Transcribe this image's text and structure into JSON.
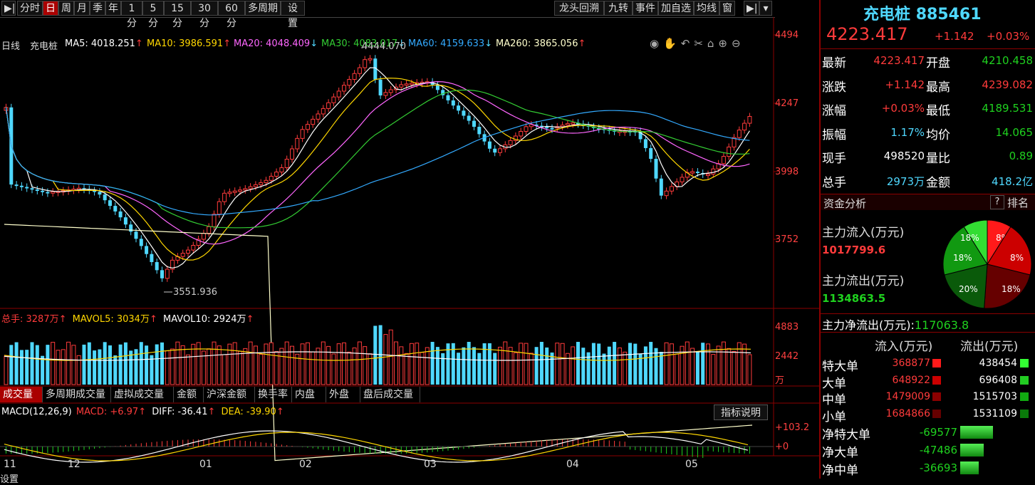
{
  "toolbar": {
    "left_items": [
      "分时",
      "日",
      "周",
      "月",
      "季",
      "年",
      "1分",
      "5分",
      "15分",
      "30分",
      "60分",
      "多周期",
      "设置"
    ],
    "active": "日",
    "right_items": [
      "龙头回溯",
      "九转",
      "事件",
      "加自选",
      "均线",
      "窗"
    ]
  },
  "indicator_line": {
    "period": "日线",
    "name": "充电桩",
    "ma5": "MA5: 4018.251",
    "ma10": "MA10: 3986.591",
    "ma20": "MA20: 4048.409",
    "ma30": "MA30: 4083.017",
    "ma60": "MA60: 4159.633",
    "ma260": "MA260: 3865.056",
    "arrow_up": "↑",
    "arrow_down": "↓"
  },
  "price_axis": [
    "4494",
    "4247",
    "3998",
    "3752"
  ],
  "annotations": {
    "high": "4444.070",
    "low": "3551.936"
  },
  "volume": {
    "header_total": "总手: 3287万",
    "mavol5": "MAVOL5: 3034万",
    "mavol10": "MAVOL10: 2924万",
    "axis": [
      "4883",
      "2442",
      "万"
    ]
  },
  "bottom_tabs": [
    "成交量",
    "多周期成交量",
    "虚拟成交量",
    "金额",
    "沪深金额",
    "换手率",
    "内盘",
    "外盘",
    "盘后成交量"
  ],
  "macd": {
    "header": "MACD(12,26,9)",
    "macd": "MACD: +6.97",
    "diff": "DIFF: -36.41",
    "dea": "DEA: -39.90",
    "axis": [
      "+103.2",
      "+0"
    ],
    "explain_button": "指标说明"
  },
  "x_axis_months": [
    "11",
    "12",
    "01",
    "02",
    "03",
    "04",
    "05"
  ],
  "bottom_cut_labels": [
    "设置"
  ],
  "panel": {
    "title": "充电桩",
    "code": "885461",
    "price": "4223.417",
    "change": "+1.142",
    "change_pct": "+0.03%",
    "rows": [
      {
        "l1": "最新",
        "v1": "4223.417",
        "c1": "red",
        "l2": "开盘",
        "v2": "4210.458",
        "c2": "green"
      },
      {
        "l1": "涨跌",
        "v1": "+1.142",
        "c1": "red",
        "l2": "最高",
        "v2": "4239.082",
        "c2": "red"
      },
      {
        "l1": "涨幅",
        "v1": "+0.03%",
        "c1": "red",
        "l2": "最低",
        "v2": "4189.531",
        "c2": "green"
      },
      {
        "l1": "振幅",
        "v1": "1.17%",
        "c1": "cyan",
        "l2": "均价",
        "v2": "14.065",
        "c2": "green"
      },
      {
        "l1": "现手",
        "v1": "498520",
        "c1": "white",
        "l2": "量比",
        "v2": "0.89",
        "c2": "green"
      },
      {
        "l1": "总手",
        "v1": "2973万",
        "c1": "cyan",
        "l2": "金额",
        "v2": "418.2亿",
        "c2": "cyan"
      }
    ],
    "fund_title": "资金分析",
    "fund_help": "?",
    "fund_rank": "排名",
    "inflow_label": "主力流入(万元)",
    "inflow_value": "1017799.6",
    "outflow_label": "主力流出(万元)",
    "outflow_value": "1134863.5",
    "pie_labels": [
      "8%",
      "8%",
      "18%",
      "20%",
      "18%",
      "18%"
    ],
    "net_label": "主力净流出(万元):",
    "net_value": "117063.8",
    "flow_headers": [
      "流入(万元)",
      "流出(万元)"
    ],
    "flow_rows": [
      {
        "label": "特大单",
        "in": "368877",
        "out": "438454"
      },
      {
        "label": "大单",
        "in": "648922",
        "out": "696408"
      },
      {
        "label": "中单",
        "in": "1479009",
        "out": "1515703"
      },
      {
        "label": "小单",
        "in": "1684866",
        "out": "1531109"
      }
    ],
    "net_rows": [
      {
        "label": "净特大单",
        "value": "-69577"
      },
      {
        "label": "净大单",
        "value": "-47486"
      },
      {
        "label": "净中单",
        "value": "-36693"
      }
    ]
  },
  "colors": {
    "up": "#ff3b3b",
    "down": "#4fd8ff",
    "ma5": "#ffffff",
    "ma10": "#ffd700",
    "ma20": "#ff66ff",
    "ma30": "#33cc33",
    "ma60": "#33aaff",
    "ma260": "#ffffcc"
  }
}
